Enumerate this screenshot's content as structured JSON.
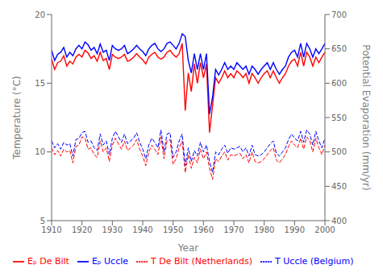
{
  "chart_data": {
    "type": "line",
    "xlabel": "Year",
    "ylabel": "Temperature (°C)",
    "y2label": "Potential Evaporation (mm/yr)",
    "x": [
      1910,
      1911,
      1912,
      1913,
      1914,
      1915,
      1916,
      1917,
      1918,
      1919,
      1920,
      1921,
      1922,
      1923,
      1924,
      1925,
      1926,
      1927,
      1928,
      1929,
      1930,
      1931,
      1932,
      1933,
      1934,
      1935,
      1936,
      1937,
      1938,
      1939,
      1940,
      1941,
      1942,
      1943,
      1944,
      1945,
      1946,
      1947,
      1948,
      1949,
      1950,
      1951,
      1952,
      1953,
      1954,
      1955,
      1956,
      1957,
      1958,
      1959,
      1960,
      1961,
      1962,
      1963,
      1964,
      1965,
      1966,
      1967,
      1968,
      1969,
      1970,
      1971,
      1972,
      1973,
      1974,
      1975,
      1976,
      1977,
      1978,
      1979,
      1980,
      1981,
      1982,
      1983,
      1984,
      1985,
      1986,
      1987,
      1988,
      1989,
      1990,
      1991,
      1992,
      1993,
      1994,
      1995,
      1996,
      1997,
      1998,
      1999,
      2000
    ],
    "xlim": [
      1910,
      2000
    ],
    "xticks": [
      1910,
      1920,
      1930,
      1940,
      1950,
      1960,
      1970,
      1980,
      1990,
      2000
    ],
    "ylim": [
      5,
      20
    ],
    "yticks": [
      5,
      10,
      15,
      20
    ],
    "y2lim": [
      400,
      700
    ],
    "y2ticks": [
      400,
      450,
      500,
      550,
      600,
      650,
      700
    ],
    "grid": false,
    "legend": "lower left",
    "series": [
      {
        "name": "T De Bilt (Netherlands)",
        "color": "#FF0000",
        "line_style": "dashed",
        "values": [
          10.3,
          9.8,
          10.1,
          9.7,
          10.2,
          10.0,
          10.1,
          9.2,
          10.4,
          10.5,
          11.1,
          11.0,
          10.2,
          10.3,
          9.8,
          9.6,
          10.8,
          10.0,
          10.3,
          9.3,
          10.5,
          11.0,
          10.6,
          10.2,
          10.8,
          10.1,
          10.3,
          10.5,
          10.9,
          10.2,
          9.7,
          9.0,
          10.0,
          10.5,
          10.2,
          9.8,
          11.1,
          9.5,
          10.8,
          10.9,
          9.1,
          9.5,
          10.3,
          10.8,
          8.5,
          9.8,
          8.8,
          9.6,
          9.2,
          10.2,
          9.5,
          10.0,
          8.8,
          8.0,
          9.5,
          9.3,
          9.7,
          10.0,
          9.4,
          9.8,
          9.7,
          9.8,
          9.9,
          9.5,
          9.8,
          9.2,
          10.0,
          9.3,
          9.2,
          9.3,
          9.5,
          9.8,
          10.1,
          10.3,
          9.4,
          9.2,
          9.5,
          9.8,
          10.4,
          10.8,
          10.5,
          10.3,
          11.0,
          10.2,
          11.1,
          10.8,
          10.0,
          11.0,
          10.3,
          9.8,
          10.5
        ]
      },
      {
        "name": "T Uccle (Belgium)",
        "color": "#0000FF",
        "line_style": "dashed",
        "values": [
          10.8,
          10.3,
          10.6,
          10.2,
          10.7,
          10.5,
          10.6,
          9.7,
          10.9,
          11.0,
          11.4,
          11.5,
          10.7,
          10.8,
          10.3,
          10.1,
          11.3,
          10.5,
          10.8,
          9.8,
          11.0,
          11.5,
          11.1,
          10.7,
          11.3,
          10.6,
          10.8,
          11.0,
          11.4,
          10.7,
          10.2,
          9.5,
          10.5,
          11.0,
          10.7,
          10.3,
          11.6,
          10.0,
          11.3,
          11.4,
          9.6,
          10.0,
          10.8,
          11.3,
          9.0,
          10.3,
          9.3,
          10.1,
          9.7,
          10.7,
          10.0,
          10.5,
          9.3,
          8.5,
          10.0,
          9.8,
          10.2,
          10.5,
          9.9,
          10.3,
          10.2,
          10.3,
          10.4,
          10.0,
          10.3,
          9.7,
          10.5,
          9.8,
          9.7,
          9.8,
          10.0,
          10.3,
          10.6,
          10.8,
          9.9,
          9.7,
          10.0,
          10.3,
          10.9,
          11.3,
          11.0,
          10.8,
          11.5,
          10.7,
          11.6,
          11.3,
          10.5,
          11.5,
          10.8,
          10.3,
          11.0
        ]
      },
      {
        "name": "Eₚ De Bilt",
        "color": "#FF0000",
        "line_style": "solid",
        "axis": "y2",
        "values": [
          635,
          620,
          630,
          632,
          640,
          625,
          632,
          628,
          638,
          642,
          638,
          648,
          644,
          636,
          640,
          632,
          645,
          633,
          636,
          620,
          642,
          638,
          636,
          638,
          642,
          632,
          634,
          638,
          643,
          638,
          634,
          628,
          638,
          642,
          645,
          638,
          635,
          638,
          645,
          648,
          642,
          638,
          643,
          658,
          560,
          615,
          588,
          628,
          600,
          630,
          608,
          628,
          528,
          568,
          608,
          600,
          608,
          618,
          608,
          614,
          608,
          618,
          614,
          608,
          614,
          600,
          614,
          608,
          600,
          608,
          614,
          618,
          608,
          618,
          608,
          600,
          608,
          614,
          625,
          632,
          635,
          625,
          645,
          625,
          645,
          638,
          625,
          638,
          630,
          638,
          645
        ]
      },
      {
        "name": "Eₚ Uccle",
        "color": "#0000FF",
        "line_style": "solid",
        "axis": "y2",
        "values": [
          648,
          633,
          642,
          645,
          652,
          638,
          645,
          640,
          650,
          655,
          650,
          660,
          656,
          648,
          652,
          643,
          657,
          645,
          648,
          633,
          655,
          650,
          648,
          650,
          655,
          643,
          646,
          650,
          655,
          650,
          646,
          640,
          650,
          655,
          658,
          650,
          646,
          650,
          658,
          660,
          655,
          650,
          658,
          672,
          668,
          633,
          615,
          643,
          620,
          643,
          620,
          643,
          555,
          580,
          620,
          612,
          620,
          630,
          620,
          625,
          620,
          630,
          625,
          620,
          625,
          613,
          625,
          620,
          613,
          620,
          625,
          630,
          620,
          630,
          620,
          613,
          620,
          625,
          638,
          645,
          648,
          638,
          658,
          638,
          658,
          650,
          638,
          650,
          643,
          650,
          658
        ]
      }
    ]
  }
}
